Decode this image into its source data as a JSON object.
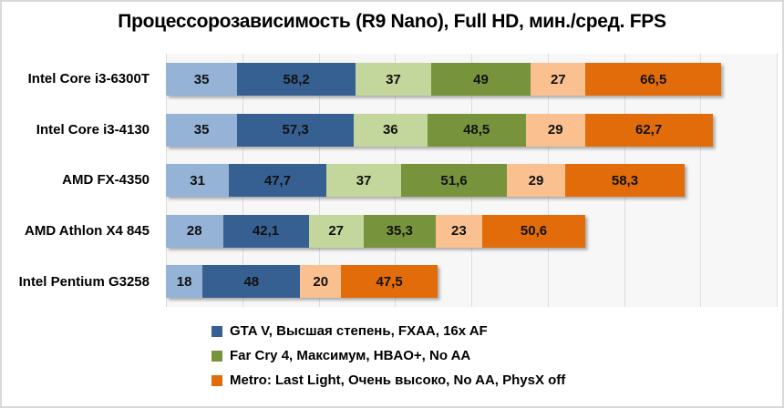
{
  "window": {
    "background": "#FFFFFF",
    "border_color": "#D9D9D9"
  },
  "chart_data": {
    "type": "bar",
    "orientation": "horizontal",
    "stacked": true,
    "title": "Процессорозависимость (R9 Nano), Full HD, мин./сред. FPS",
    "categories": [
      "Intel Core i3-6300T",
      "Intel Core i3-4130",
      "AMD FX-4350",
      "AMD Athlon X4 845",
      "Intel Pentium G3258"
    ],
    "xlim": [
      0,
      300
    ],
    "gridline_count": 9,
    "grid": true,
    "legend_position": "bottom",
    "plot_background": "#F7F7F7",
    "gridline_color": "#DCDCDC",
    "value_decimal_separator": ",",
    "series": [
      {
        "name": "GTA V, Высшая степень, FXAA, 16x AF",
        "min_color": "#95B3D7",
        "avg_color": "#376092",
        "min": [
          35,
          35,
          31,
          28,
          18
        ],
        "avg": [
          58.2,
          57.3,
          47.7,
          42.1,
          48
        ]
      },
      {
        "name": "Far Cry 4, Максимум, HBAO+, No AA",
        "min_color": "#C3D69B",
        "avg_color": "#77933C",
        "min": [
          37,
          36,
          37,
          27,
          null
        ],
        "avg": [
          49,
          48.5,
          51.6,
          35.3,
          null
        ]
      },
      {
        "name": "Metro: Last Light, Очень высоко, No AA, PhysX off",
        "min_color": "#FAC090",
        "avg_color": "#E36C0A",
        "min": [
          27,
          29,
          29,
          23,
          20
        ],
        "avg": [
          66.5,
          62.7,
          58.3,
          50.6,
          47.5
        ]
      }
    ]
  }
}
